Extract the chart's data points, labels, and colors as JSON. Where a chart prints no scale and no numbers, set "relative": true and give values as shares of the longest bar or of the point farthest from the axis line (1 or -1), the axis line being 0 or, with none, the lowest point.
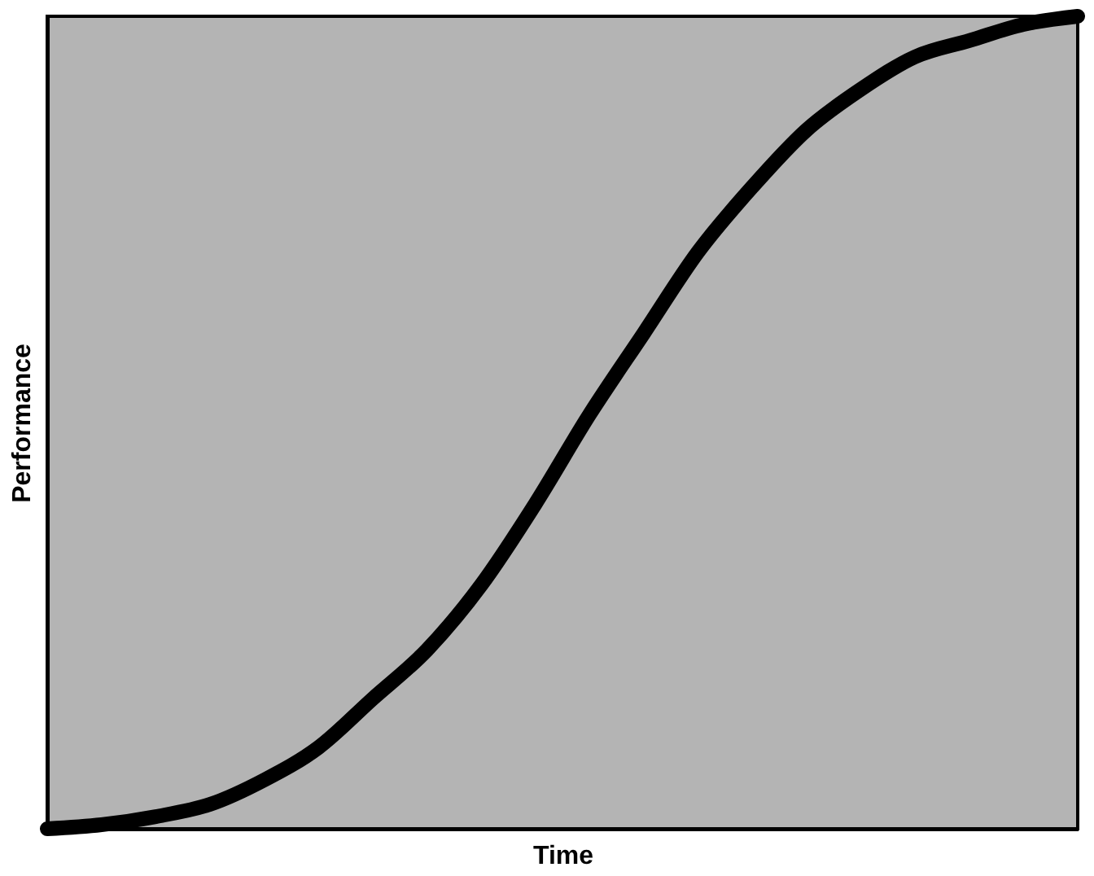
{
  "chart_data": {
    "type": "line",
    "relative": true,
    "xlabel": "Time",
    "ylabel": "Performance",
    "categories": [
      null,
      null,
      null,
      null,
      null,
      null,
      null,
      null,
      null,
      null,
      null,
      null,
      null,
      null,
      null,
      null,
      null,
      null,
      null,
      null
    ],
    "series": [
      {
        "color": "#000000",
        "values": [
          0.0,
          0.005,
          0.015,
          0.03,
          0.06,
          0.1,
          0.16,
          0.22,
          0.3,
          0.4,
          0.51,
          0.61,
          0.71,
          0.79,
          0.86,
          0.91,
          0.95,
          0.97,
          0.99,
          1.0
        ]
      }
    ],
    "grid": false,
    "line_style": "solid"
  }
}
